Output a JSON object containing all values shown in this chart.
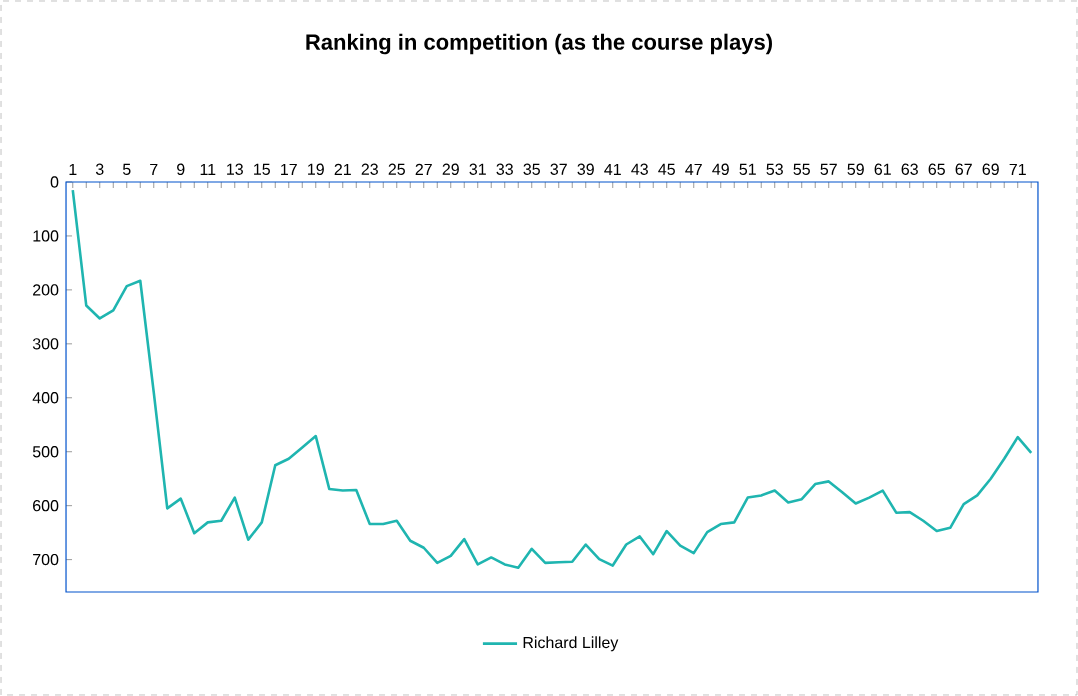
{
  "chart_data": {
    "type": "line",
    "title": "Ranking in competition (as the course plays)",
    "categories": [
      "1",
      null,
      "3",
      null,
      "5",
      null,
      "7",
      null,
      "9",
      null,
      "11",
      null,
      "13",
      null,
      "15",
      null,
      "17",
      null,
      "19",
      null,
      "21",
      null,
      "23",
      null,
      "25",
      null,
      "27",
      null,
      "29",
      null,
      "31",
      null,
      "33",
      null,
      "35",
      null,
      "37",
      null,
      "39",
      null,
      "41",
      null,
      "43",
      null,
      "45",
      null,
      "47",
      null,
      "49",
      null,
      "51",
      null,
      "53",
      null,
      "55",
      null,
      "57",
      null,
      "59",
      null,
      "61",
      null,
      "63",
      null,
      "65",
      null,
      "67",
      null,
      "69",
      null,
      "71",
      null
    ],
    "series": [
      {
        "name": "Richard Lilley",
        "color": "#1fb5b0",
        "values": [
          15,
          229,
          253,
          238,
          193,
          183,
          390,
          605,
          587,
          651,
          631,
          628,
          585,
          663,
          631,
          525,
          513,
          492,
          471,
          569,
          572,
          571,
          634,
          634,
          628,
          665,
          678,
          706,
          693,
          662,
          709,
          696,
          709,
          715,
          680,
          706,
          705,
          704,
          672,
          699,
          711,
          672,
          657,
          690,
          647,
          674,
          688,
          649,
          634,
          631,
          585,
          581,
          572,
          594,
          588,
          560,
          555,
          575,
          596,
          585,
          572,
          613,
          612,
          628,
          647,
          641,
          597,
          581,
          550,
          513,
          473,
          502
        ]
      }
    ],
    "ylim": [
      760,
      0
    ],
    "yticks": [
      0,
      100,
      200,
      300,
      400,
      500,
      600,
      700
    ],
    "grid": false,
    "legend": "bottom",
    "marker": "none",
    "line_style": "solid"
  }
}
